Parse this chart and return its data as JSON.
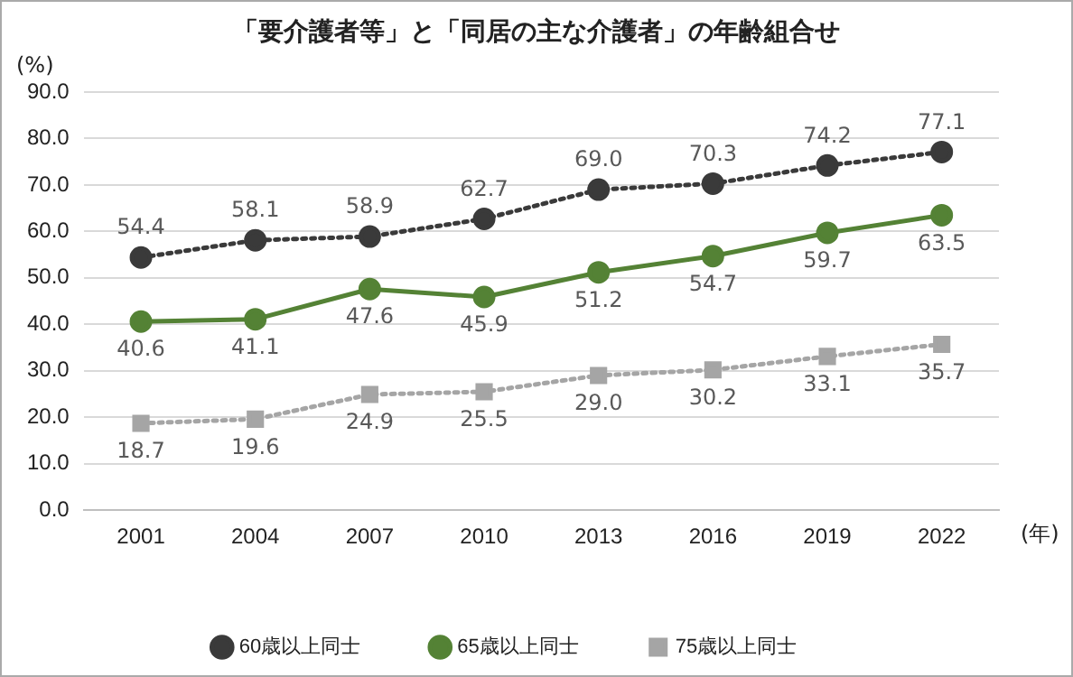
{
  "chart_data": {
    "type": "line",
    "title": "「要介護者等」と「同居の主な介護者」の年齢組合せ",
    "ylabel": "(%)",
    "xlabel": "(年)",
    "categories": [
      "2001",
      "2004",
      "2007",
      "2010",
      "2013",
      "2016",
      "2019",
      "2022"
    ],
    "series": [
      {
        "name": "60歳以上同士",
        "color": "#3a3a3a",
        "line_style": "dotted",
        "marker": "circle",
        "values": [
          54.4,
          58.1,
          58.9,
          62.7,
          69.0,
          70.3,
          74.2,
          77.1
        ],
        "value_labels": [
          "54.4",
          "58.1",
          "58.9",
          "62.7",
          "69.0",
          "70.3",
          "74.2",
          "77.1"
        ]
      },
      {
        "name": "65歳以上同士",
        "color": "#548235",
        "line_style": "solid",
        "marker": "circle",
        "values": [
          40.6,
          41.1,
          47.6,
          45.9,
          51.2,
          54.7,
          59.7,
          63.5
        ],
        "value_labels": [
          "40.6",
          "41.1",
          "47.6",
          "45.9",
          "51.2",
          "54.7",
          "59.7",
          "63.5"
        ]
      },
      {
        "name": "75歳以上同士",
        "color": "#a5a5a5",
        "line_style": "dotted",
        "marker": "square",
        "values": [
          18.7,
          19.6,
          24.9,
          25.5,
          29.0,
          30.2,
          33.1,
          35.7
        ],
        "value_labels": [
          "18.7",
          "19.6",
          "24.9",
          "25.5",
          "29.0",
          "30.2",
          "33.1",
          "35.7"
        ]
      }
    ],
    "ylim": [
      0,
      90
    ],
    "yticks": [
      {
        "value": 0,
        "label": "0.0"
      },
      {
        "value": 10,
        "label": "10.0"
      },
      {
        "value": 20,
        "label": "20.0"
      },
      {
        "value": 30,
        "label": "30.0"
      },
      {
        "value": 40,
        "label": "40.0"
      },
      {
        "value": 50,
        "label": "50.0"
      },
      {
        "value": 60,
        "label": "60.0"
      },
      {
        "value": 70,
        "label": "70.0"
      },
      {
        "value": 80,
        "label": "80.0"
      },
      {
        "value": 90,
        "label": "90.0"
      }
    ],
    "grid": "y",
    "legend": "bottom"
  }
}
